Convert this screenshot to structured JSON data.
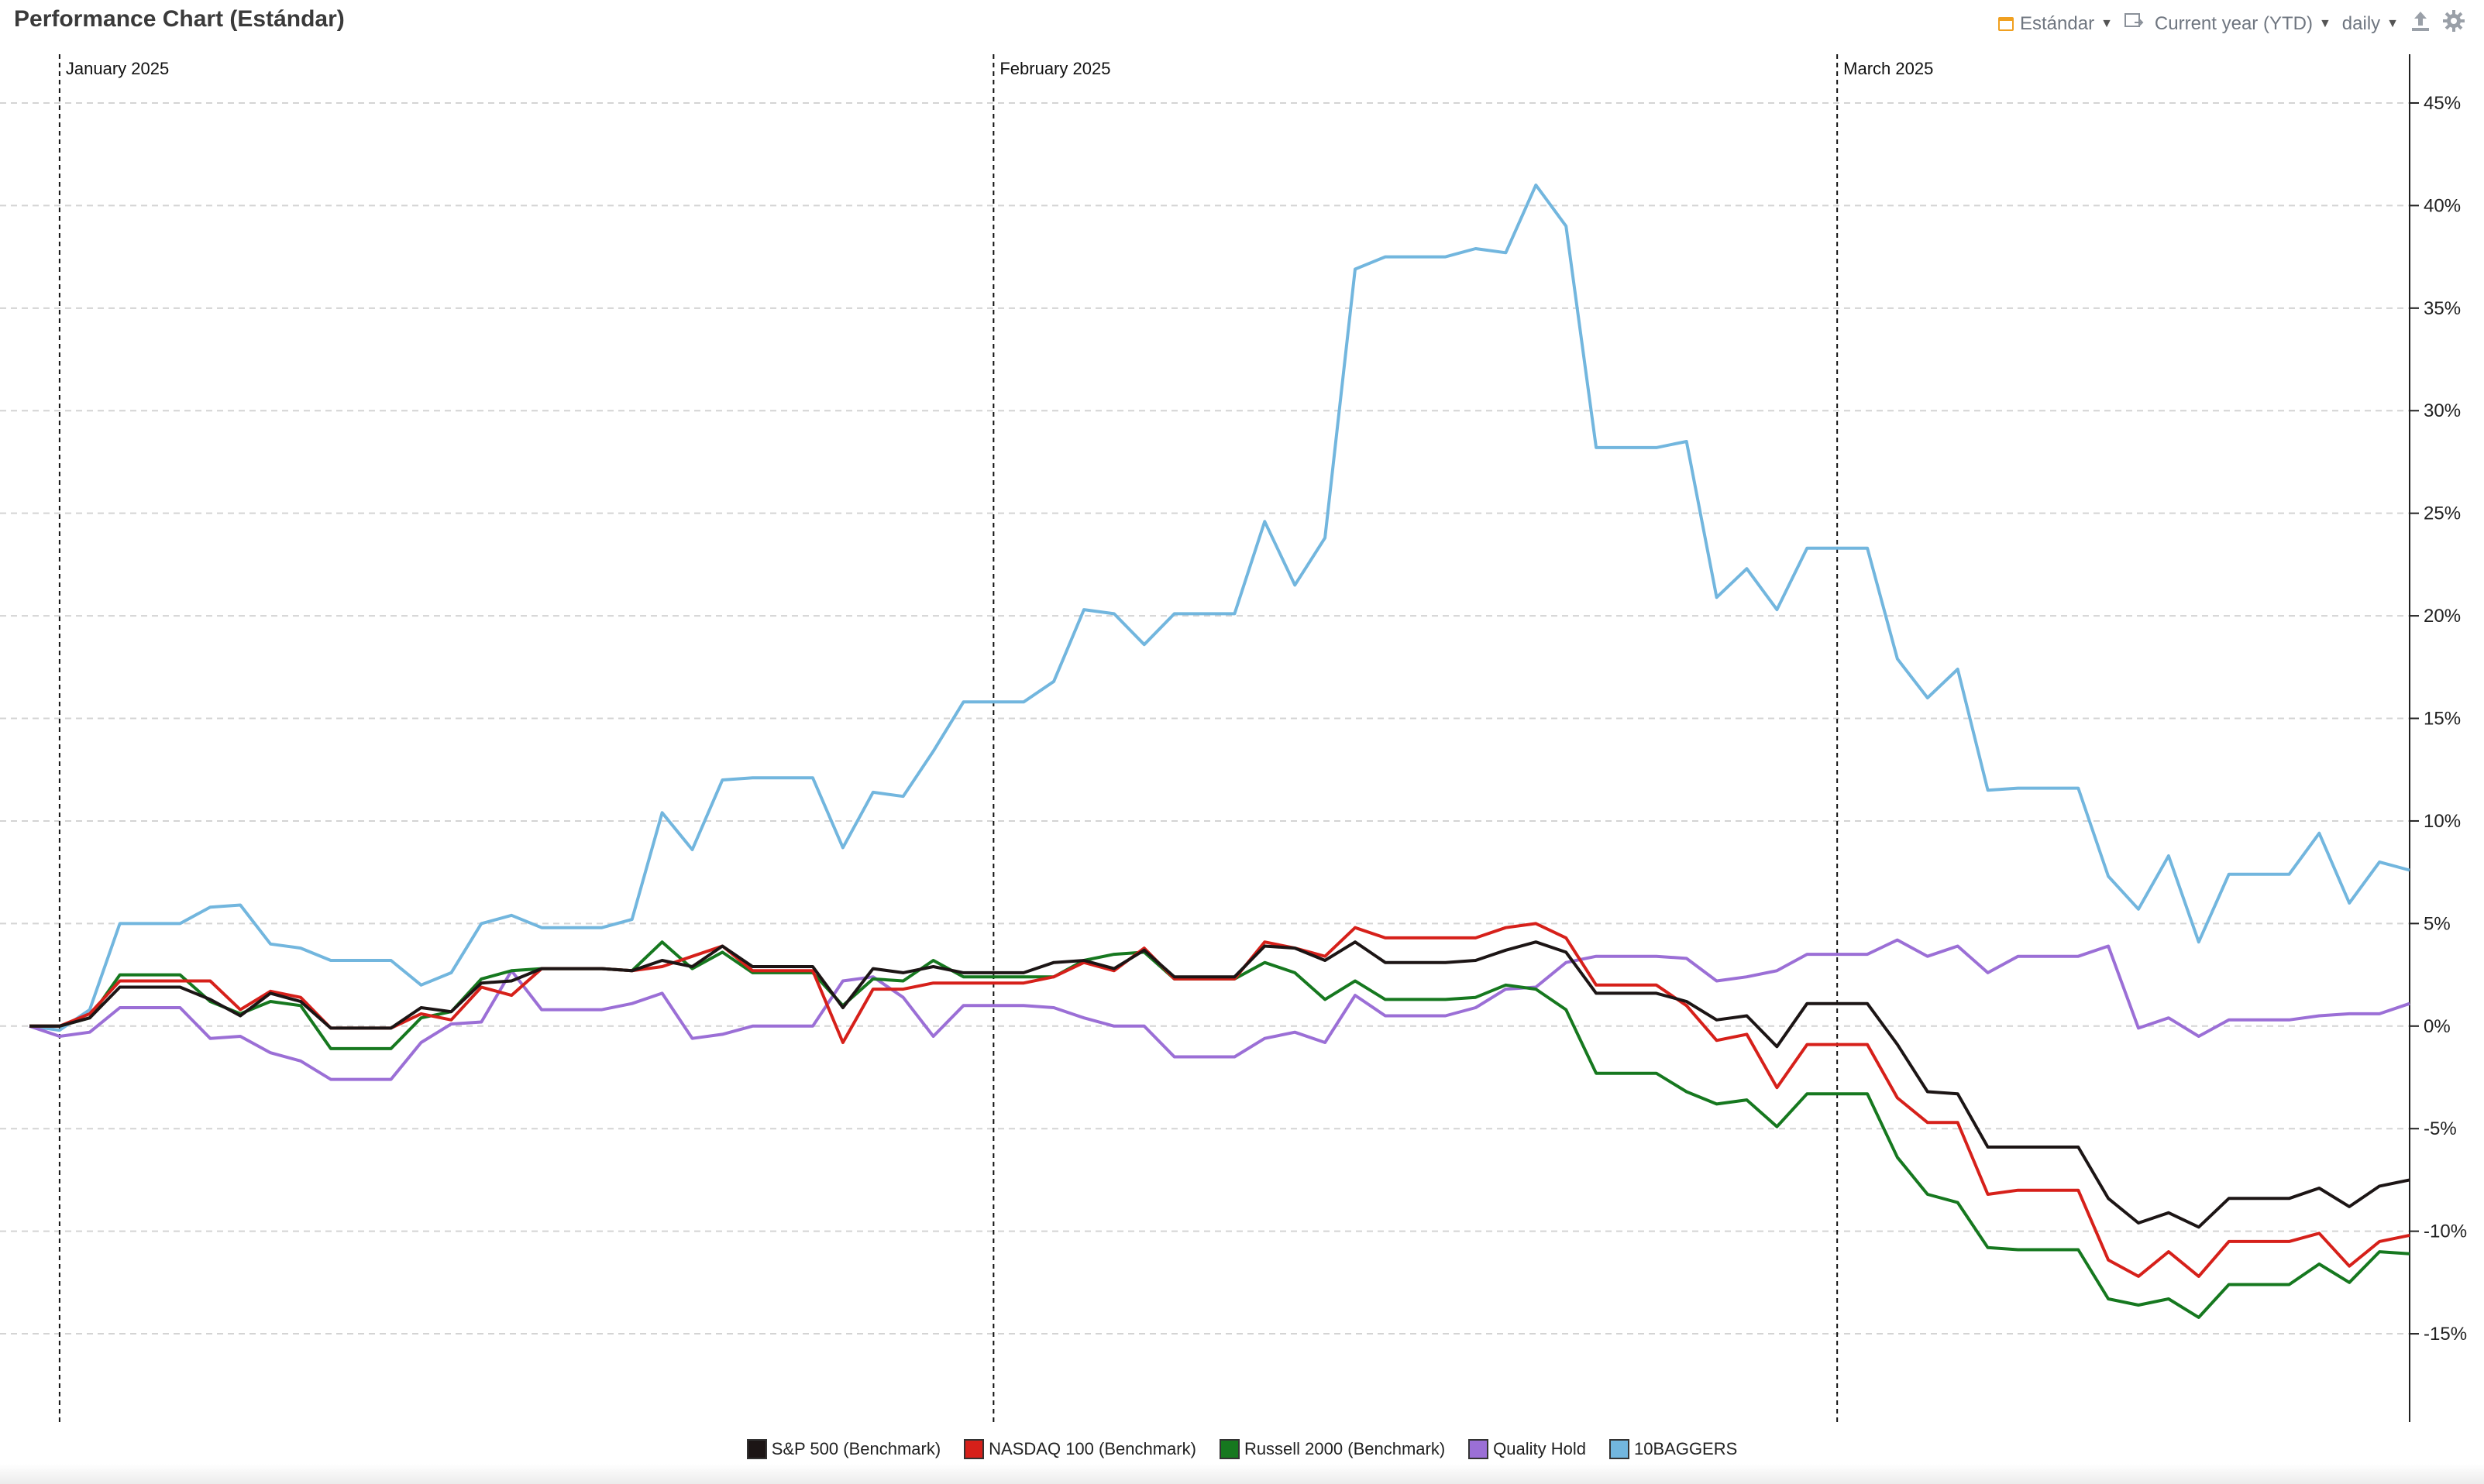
{
  "header": {
    "title": "Performance Chart (Estándar)",
    "view_label": "Estándar",
    "period_label": "Current year (YTD)",
    "interval_label": "daily",
    "icons": [
      "calendar-icon",
      "compare-icon",
      "export-icon",
      "gear-icon"
    ]
  },
  "chart_data": {
    "type": "line",
    "title": "Performance Chart (Estándar)",
    "ylim": [
      -19,
      47
    ],
    "y_ticks": [
      45,
      40,
      35,
      30,
      25,
      20,
      15,
      10,
      5,
      0,
      -5,
      -10,
      -15
    ],
    "y_tick_labels": [
      "45%",
      "40%",
      "35%",
      "30%",
      "25%",
      "20%",
      "15%",
      "10%",
      "5%",
      "0%",
      "-5%",
      "-10%",
      "-15%"
    ],
    "y_axis_position": "right",
    "grid": "horizontal dashed",
    "month_markers": [
      {
        "label": "January 2025",
        "index": 1
      },
      {
        "label": "February 2025",
        "index": 32
      },
      {
        "label": "March 2025",
        "index": 60
      }
    ],
    "legend_position": "bottom-center",
    "series": [
      {
        "name": "10BAGGERS",
        "color": "#72b6de",
        "values": [
          0,
          -0.2,
          0.8,
          5,
          5,
          5,
          5.8,
          5.9,
          4,
          3.8,
          3.2,
          3.2,
          3.2,
          2,
          2.6,
          5,
          5.4,
          4.8,
          4.8,
          4.8,
          5.2,
          10.4,
          8.6,
          12,
          12.1,
          12.1,
          12.1,
          8.7,
          11.4,
          11.2,
          13.4,
          15.8,
          15.8,
          15.8,
          16.8,
          20.3,
          20.1,
          18.6,
          20.1,
          20.1,
          20.1,
          24.6,
          21.5,
          23.8,
          36.9,
          37.5,
          37.5,
          37.5,
          37.9,
          37.7,
          41,
          39,
          28.2,
          28.2,
          28.2,
          28.5,
          20.9,
          22.3,
          20.3,
          23.3,
          23.3,
          23.3,
          17.9,
          16,
          17.4,
          11.5,
          11.6,
          11.6,
          11.6,
          7.3,
          5.7,
          8.3,
          4.1,
          7.4,
          7.4,
          7.4,
          9.4,
          6,
          8,
          7.6
        ]
      },
      {
        "name": "Quality Hold",
        "color": "#9b6fd6",
        "values": [
          0,
          -0.5,
          -0.3,
          0.9,
          0.9,
          0.9,
          -0.6,
          -0.5,
          -1.3,
          -1.7,
          -2.6,
          -2.6,
          -2.6,
          -0.8,
          0.1,
          0.2,
          2.7,
          0.8,
          0.8,
          0.8,
          1.1,
          1.6,
          -0.6,
          -0.4,
          0,
          0,
          0,
          2.2,
          2.4,
          1.4,
          -0.5,
          1,
          1,
          1,
          0.9,
          0.4,
          0,
          0,
          -1.5,
          -1.5,
          -1.5,
          -0.6,
          -0.3,
          -0.8,
          1.5,
          0.5,
          0.5,
          0.5,
          0.9,
          1.8,
          1.9,
          3.1,
          3.4,
          3.4,
          3.4,
          3.3,
          2.2,
          2.4,
          2.7,
          3.5,
          3.5,
          3.5,
          4.2,
          3.4,
          3.9,
          2.6,
          3.4,
          3.4,
          3.4,
          3.9,
          -0.1,
          0.4,
          -0.5,
          0.3,
          0.3,
          0.3,
          0.5,
          0.6,
          0.6,
          1.1
        ]
      },
      {
        "name": "Russell 2000 (Benchmark)",
        "color": "#16781f",
        "values": [
          0,
          0,
          0.4,
          2.5,
          2.5,
          2.5,
          1.2,
          0.6,
          1.2,
          1,
          -1.1,
          -1.1,
          -1.1,
          0.4,
          0.7,
          2.3,
          2.7,
          2.8,
          2.8,
          2.8,
          2.7,
          4.1,
          2.8,
          3.6,
          2.6,
          2.6,
          2.6,
          1,
          2.3,
          2.2,
          3.2,
          2.4,
          2.4,
          2.4,
          2.4,
          3.2,
          3.5,
          3.6,
          2.3,
          2.3,
          2.3,
          3.1,
          2.6,
          1.3,
          2.2,
          1.3,
          1.3,
          1.3,
          1.4,
          2,
          1.8,
          0.8,
          -2.3,
          -2.3,
          -2.3,
          -3.2,
          -3.8,
          -3.6,
          -4.9,
          -3.3,
          -3.3,
          -3.3,
          -6.4,
          -8.2,
          -8.6,
          -10.8,
          -10.9,
          -10.9,
          -10.9,
          -13.3,
          -13.6,
          -13.3,
          -14.2,
          -12.6,
          -12.6,
          -12.6,
          -11.6,
          -12.5,
          -11,
          -11.1
        ]
      },
      {
        "name": "NASDAQ 100 (Benchmark)",
        "color": "#d6201a",
        "values": [
          0,
          0,
          0.6,
          2.2,
          2.2,
          2.2,
          2.2,
          0.8,
          1.7,
          1.4,
          -0.1,
          -0.1,
          -0.1,
          0.6,
          0.3,
          1.9,
          1.5,
          2.8,
          2.8,
          2.8,
          2.7,
          2.9,
          3.4,
          3.9,
          2.7,
          2.7,
          2.7,
          -0.8,
          1.8,
          1.8,
          2.1,
          2.1,
          2.1,
          2.1,
          2.4,
          3.1,
          2.7,
          3.8,
          2.3,
          2.3,
          2.3,
          4.1,
          3.8,
          3.4,
          4.8,
          4.3,
          4.3,
          4.3,
          4.3,
          4.8,
          5,
          4.3,
          2,
          2,
          2,
          1,
          -0.7,
          -0.4,
          -3,
          -0.9,
          -0.9,
          -0.9,
          -3.5,
          -4.7,
          -4.7,
          -8.2,
          -8,
          -8,
          -8,
          -11.4,
          -12.2,
          -11,
          -12.2,
          -10.5,
          -10.5,
          -10.5,
          -10.1,
          -11.7,
          -10.5,
          -10.2
        ]
      },
      {
        "name": "S&P 500  (Benchmark)",
        "color": "#1c1515",
        "values": [
          0,
          0,
          0.4,
          1.9,
          1.9,
          1.9,
          1.3,
          0.5,
          1.6,
          1.2,
          -0.1,
          -0.1,
          -0.1,
          0.9,
          0.7,
          2.1,
          2.2,
          2.8,
          2.8,
          2.8,
          2.7,
          3.2,
          2.9,
          3.9,
          2.9,
          2.9,
          2.9,
          0.9,
          2.8,
          2.6,
          2.9,
          2.6,
          2.6,
          2.6,
          3.1,
          3.2,
          2.8,
          3.7,
          2.4,
          2.4,
          2.4,
          3.9,
          3.8,
          3.2,
          4.1,
          3.1,
          3.1,
          3.1,
          3.2,
          3.7,
          4.1,
          3.6,
          1.6,
          1.6,
          1.6,
          1.2,
          0.3,
          0.5,
          -1,
          1.1,
          1.1,
          1.1,
          -0.9,
          -3.2,
          -3.3,
          -5.9,
          -5.9,
          -5.9,
          -5.9,
          -8.4,
          -9.6,
          -9.1,
          -9.8,
          -8.4,
          -8.4,
          -8.4,
          -7.9,
          -8.8,
          -7.8,
          -7.5
        ]
      }
    ]
  },
  "legend": [
    {
      "label": "S&P 500  (Benchmark)",
      "color": "#1c1515"
    },
    {
      "label": "NASDAQ 100 (Benchmark)",
      "color": "#d6201a"
    },
    {
      "label": "Russell 2000 (Benchmark)",
      "color": "#16781f"
    },
    {
      "label": "Quality Hold",
      "color": "#9b6fd6"
    },
    {
      "label": "10BAGGERS",
      "color": "#72b6de"
    }
  ]
}
